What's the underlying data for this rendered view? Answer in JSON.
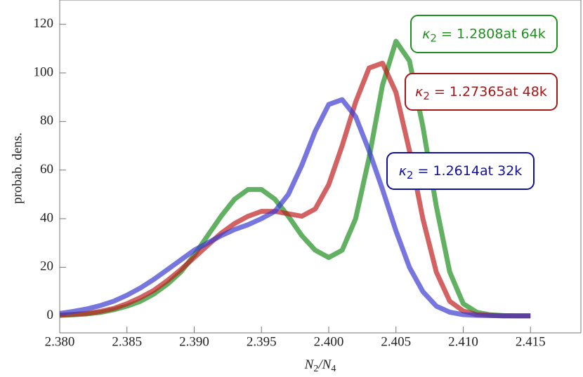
{
  "chart_data": {
    "type": "line",
    "x_label": [
      "N",
      "2",
      "/N",
      "4"
    ],
    "y_label": "probab. dens.",
    "x": [
      2.38,
      2.381,
      2.382,
      2.383,
      2.384,
      2.385,
      2.386,
      2.387,
      2.388,
      2.389,
      2.39,
      2.391,
      2.392,
      2.393,
      2.394,
      2.395,
      2.396,
      2.397,
      2.398,
      2.399,
      2.4,
      2.401,
      2.402,
      2.403,
      2.404,
      2.405,
      2.406,
      2.407,
      2.408,
      2.409,
      2.41,
      2.411,
      2.412,
      2.413,
      2.414,
      2.415
    ],
    "series": [
      {
        "name": "64k",
        "color": "#1f8f1f",
        "values": [
          0.2,
          0.4,
          0.8,
          1.4,
          2.5,
          4,
          6,
          9,
          13,
          18,
          25,
          33,
          41,
          48,
          52,
          52,
          48,
          41,
          33,
          27,
          24,
          27,
          40,
          65,
          95,
          113,
          105,
          78,
          45,
          18,
          5,
          1.5,
          0.4,
          0.1,
          0,
          0
        ]
      },
      {
        "name": "48k",
        "color": "#c02020",
        "values": [
          0.3,
          0.6,
          1,
          1.8,
          3,
          5,
          7.5,
          10.5,
          14.5,
          19,
          24,
          29,
          34,
          38,
          41,
          43,
          43,
          42,
          41,
          44,
          54,
          70,
          88,
          102,
          104,
          92,
          68,
          40,
          18,
          6,
          2,
          0.5,
          0.2,
          0,
          0,
          0
        ]
      },
      {
        "name": "32k",
        "color": "#3c3cd0",
        "values": [
          1,
          1.8,
          2.8,
          4.2,
          6,
          8.5,
          11.5,
          15,
          19,
          23,
          27,
          30,
          33,
          35.5,
          37.5,
          40,
          43,
          50,
          62,
          76,
          87,
          89,
          82,
          68,
          52,
          35,
          20,
          10,
          4,
          1.5,
          0.5,
          0.2,
          0.1,
          0,
          0,
          0
        ]
      }
    ],
    "annotations": [
      {
        "parts": [
          "κ",
          "2",
          " = 1.2808at 64k"
        ],
        "color": "#1f8f1f"
      },
      {
        "parts": [
          "κ",
          "2",
          " = 1.27365at 48k"
        ],
        "color": "#a01818"
      },
      {
        "parts": [
          "κ",
          "2",
          " = 1.2614at 32k"
        ],
        "color": "#1010a0"
      }
    ],
    "xlim": [
      2.38,
      2.4188
    ],
    "ylim": [
      -7,
      130
    ],
    "xticks": [
      {
        "value": 2.38,
        "label": "2.380"
      },
      2.385,
      {
        "value": 2.39,
        "label": "2.390"
      },
      2.395,
      {
        "value": 2.4,
        "label": "2.400"
      },
      2.405,
      {
        "value": 2.41,
        "label": "2.410"
      },
      2.415
    ],
    "yticks": [
      0,
      20,
      40,
      60,
      80,
      100,
      120
    ]
  }
}
